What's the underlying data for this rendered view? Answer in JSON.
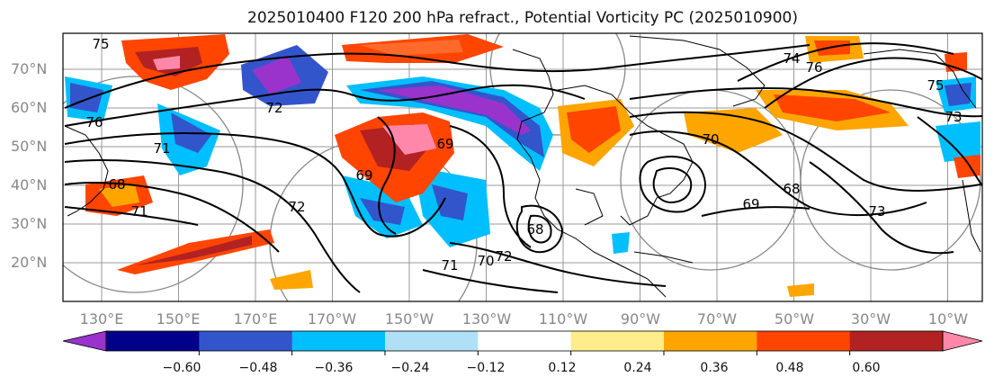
{
  "title": "2025010400 F120 200 hPa refract., Potential Vorticity PC (2025010900)",
  "lat_labels": [
    "70°N",
    "60°N",
    "50°N",
    "40°N",
    "30°N",
    "20°N"
  ],
  "lon_labels": [
    "130°E",
    "150°E",
    "170°E",
    "170°W",
    "150°W",
    "130°W",
    "110°W",
    "90°W",
    "70°W",
    "50°W",
    "30°W",
    "10°W"
  ],
  "contour_labels": [
    "75",
    "76",
    "76",
    "74",
    "75",
    "73",
    "72",
    "71",
    "69",
    "68",
    "68",
    "69",
    "68",
    "70",
    "71",
    "72",
    "72",
    "71",
    "70",
    "69",
    "73"
  ],
  "colorbar": {
    "ticks": [
      "−0.60",
      "−0.48",
      "−0.36",
      "−0.24",
      "−0.12",
      "0.12",
      "0.24",
      "0.36",
      "0.48",
      "0.60"
    ],
    "colors": [
      "#9933cc",
      "#00008b",
      "#3355cc",
      "#00bfff",
      "#b0e0f8",
      "#ffffff",
      "#ffec8b",
      "#ffa500",
      "#ff4500",
      "#b22222",
      "#ff88aa"
    ]
  }
}
